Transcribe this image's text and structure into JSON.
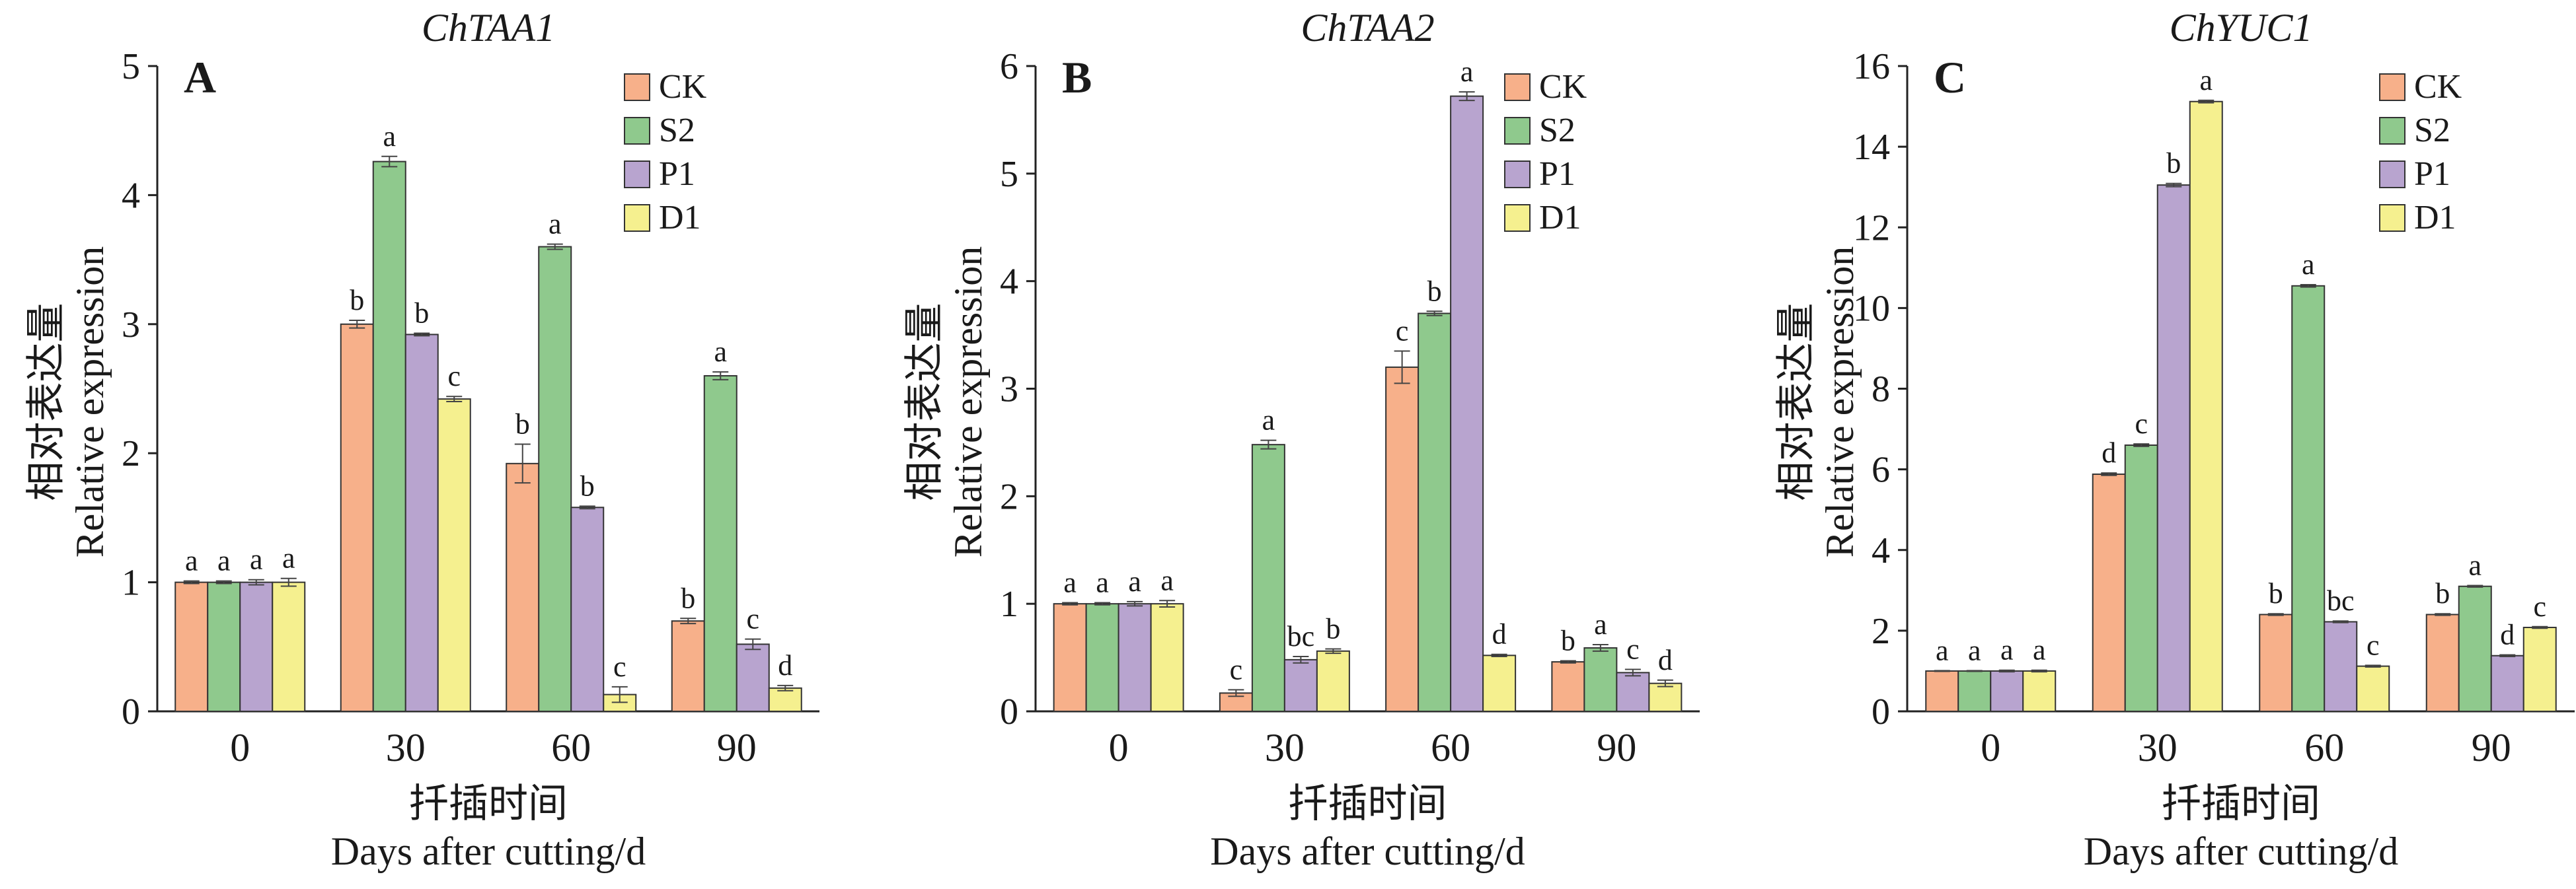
{
  "chart_data": [
    {
      "type": "bar",
      "panel_letter": "A",
      "title": "ChTAA1",
      "ylabel_cn": "相对表达量",
      "ylabel": "Relative expression",
      "xlabel_cn": "扦插时间",
      "xlabel": "Days after cutting/d",
      "categories": [
        "0",
        "30",
        "60",
        "90"
      ],
      "ylim": [
        0,
        5
      ],
      "yticks": [
        0,
        1,
        2,
        3,
        4,
        5
      ],
      "legend_position": "top-right",
      "series": [
        {
          "name": "CK",
          "color": "#f7b08a",
          "values": [
            1.0,
            3.0,
            1.92,
            0.7
          ],
          "errors": [
            0.01,
            0.03,
            0.15,
            0.02
          ],
          "labels": [
            "a",
            "b",
            "b",
            "b"
          ]
        },
        {
          "name": "S2",
          "color": "#8fc98d",
          "values": [
            1.0,
            4.26,
            3.6,
            2.6
          ],
          "errors": [
            0.01,
            0.04,
            0.02,
            0.03
          ],
          "labels": [
            "a",
            "a",
            "a",
            "a"
          ]
        },
        {
          "name": "P1",
          "color": "#b8a4cf",
          "values": [
            1.0,
            2.92,
            1.58,
            0.52
          ],
          "errors": [
            0.02,
            0.01,
            0.01,
            0.04
          ],
          "labels": [
            "a",
            "b",
            "b",
            "c"
          ]
        },
        {
          "name": "D1",
          "color": "#f5f08f",
          "values": [
            1.0,
            2.42,
            0.13,
            0.18
          ],
          "errors": [
            0.03,
            0.02,
            0.06,
            0.02
          ],
          "labels": [
            "a",
            "c",
            "c",
            "d"
          ]
        }
      ]
    },
    {
      "type": "bar",
      "panel_letter": "B",
      "title": "ChTAA2",
      "ylabel_cn": "相对表达量",
      "ylabel": "Relative expression",
      "xlabel_cn": "扦插时间",
      "xlabel": "Days after cutting/d",
      "categories": [
        "0",
        "30",
        "60",
        "90"
      ],
      "ylim": [
        0,
        6
      ],
      "yticks": [
        0,
        1,
        2,
        3,
        4,
        5,
        6
      ],
      "legend_position": "top-right",
      "series": [
        {
          "name": "CK",
          "color": "#f7b08a",
          "values": [
            1.0,
            0.17,
            3.2,
            0.46
          ],
          "errors": [
            0.01,
            0.03,
            0.15,
            0.01
          ],
          "labels": [
            "a",
            "c",
            "c",
            "b"
          ]
        },
        {
          "name": "S2",
          "color": "#8fc98d",
          "values": [
            1.0,
            2.48,
            3.7,
            0.59
          ],
          "errors": [
            0.01,
            0.04,
            0.02,
            0.03
          ],
          "labels": [
            "a",
            "a",
            "b",
            "a"
          ]
        },
        {
          "name": "P1",
          "color": "#b8a4cf",
          "values": [
            1.0,
            0.48,
            5.72,
            0.36
          ],
          "errors": [
            0.02,
            0.03,
            0.04,
            0.03
          ],
          "labels": [
            "a",
            "bc",
            "a",
            "c"
          ]
        },
        {
          "name": "D1",
          "color": "#f5f08f",
          "values": [
            1.0,
            0.56,
            0.52,
            0.26
          ],
          "errors": [
            0.03,
            0.02,
            0.01,
            0.03
          ],
          "labels": [
            "a",
            "b",
            "d",
            "d"
          ]
        }
      ]
    },
    {
      "type": "bar",
      "panel_letter": "C",
      "title": "ChYUC1",
      "ylabel_cn": "相对表达量",
      "ylabel": "Relative expression",
      "xlabel_cn": "扦插时间",
      "xlabel": "Days after cutting/d",
      "categories": [
        "0",
        "30",
        "60",
        "90"
      ],
      "ylim": [
        0,
        16
      ],
      "yticks": [
        0,
        2,
        4,
        6,
        8,
        10,
        12,
        14,
        16
      ],
      "legend_position": "top-right",
      "series": [
        {
          "name": "CK",
          "color": "#f7b08a",
          "values": [
            1.0,
            5.88,
            2.4,
            2.4
          ],
          "errors": [
            0.01,
            0.03,
            0.02,
            0.02
          ],
          "labels": [
            "a",
            "d",
            "b",
            "b"
          ]
        },
        {
          "name": "S2",
          "color": "#8fc98d",
          "values": [
            1.0,
            6.6,
            10.55,
            3.1
          ],
          "errors": [
            0.01,
            0.03,
            0.03,
            0.02
          ],
          "labels": [
            "a",
            "c",
            "a",
            "a"
          ]
        },
        {
          "name": "P1",
          "color": "#b8a4cf",
          "values": [
            1.0,
            13.05,
            2.22,
            1.38
          ],
          "errors": [
            0.02,
            0.04,
            0.02,
            0.02
          ],
          "labels": [
            "a",
            "b",
            "bc",
            "d"
          ]
        },
        {
          "name": "D1",
          "color": "#f5f08f",
          "values": [
            1.0,
            15.12,
            1.12,
            2.08
          ],
          "errors": [
            0.02,
            0.03,
            0.02,
            0.02
          ],
          "labels": [
            "a",
            "a",
            "c",
            "c"
          ]
        }
      ]
    }
  ]
}
